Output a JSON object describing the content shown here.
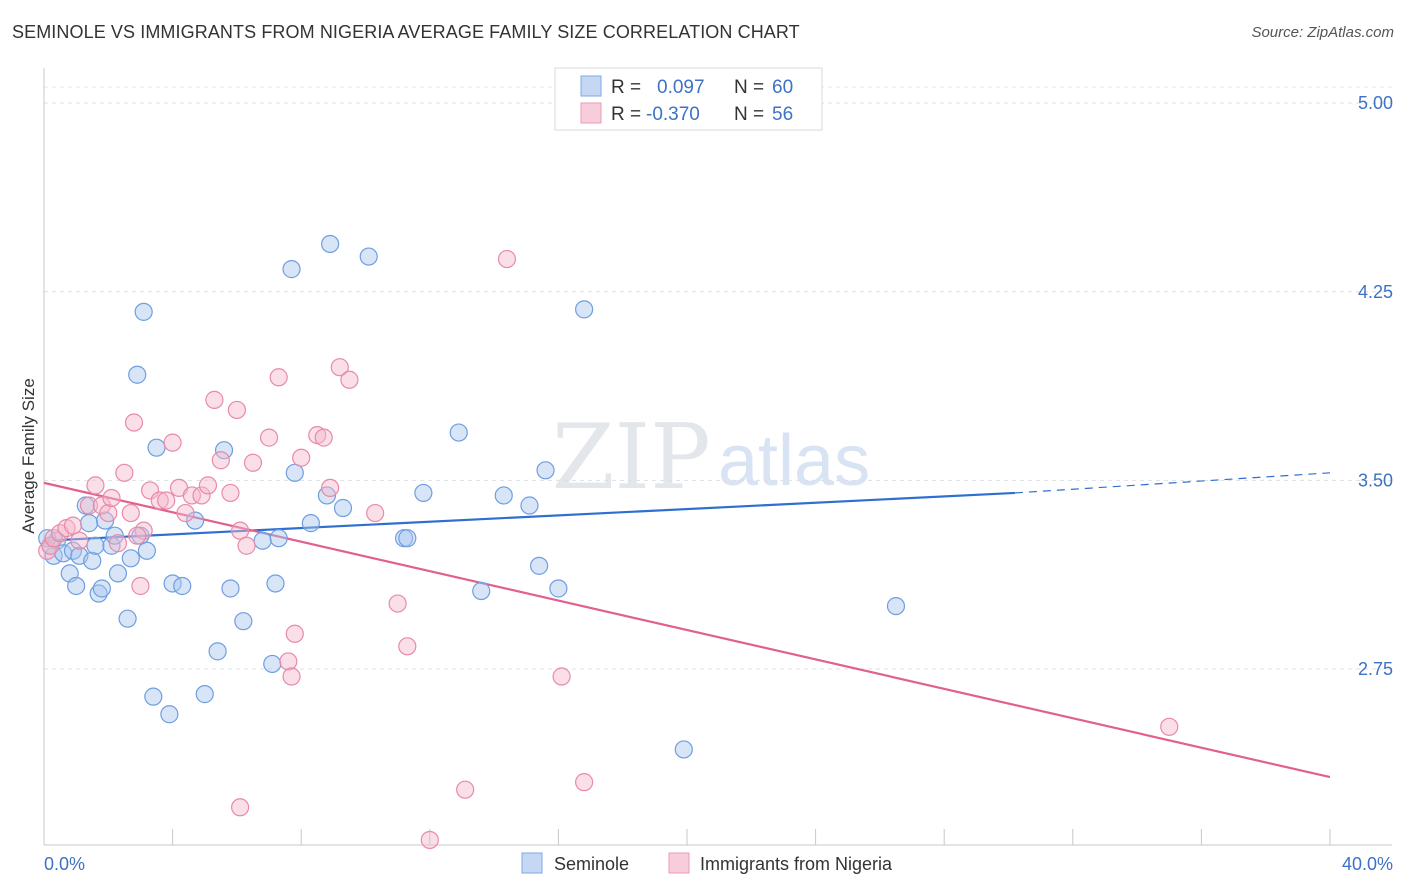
{
  "header": {
    "title": "SEMINOLE VS IMMIGRANTS FROM NIGERIA AVERAGE FAMILY SIZE CORRELATION CHART",
    "source": "Source: ZipAtlas.com"
  },
  "watermark": {
    "zip": "ZIP",
    "atlas": "atlas"
  },
  "legend": {
    "r_label": "R =",
    "n_label": "N =",
    "rows": [
      {
        "r": "0.097",
        "n": "60",
        "color": "#a9c6ee"
      },
      {
        "r": "-0.370",
        "n": "56",
        "color": "#f5b8cb"
      }
    ]
  },
  "bottom_legend": [
    "Seminole",
    "Immigrants from Nigeria"
  ],
  "chart_data": {
    "type": "scatter",
    "title": "SEMINOLE VS IMMIGRANTS FROM NIGERIA AVERAGE FAMILY SIZE CORRELATION CHART",
    "xlabel": "",
    "ylabel": "Average Family Size",
    "xlim": [
      0,
      40
    ],
    "ylim": [
      2.05,
      5.1
    ],
    "x_tick_labels": [
      "0.0%",
      "40.0%"
    ],
    "y_ticks": [
      2.75,
      3.5,
      4.25,
      5.0
    ],
    "y_tick_labels": [
      "2.75",
      "3.50",
      "4.25",
      "5.00"
    ],
    "grid": "horizontal dashed",
    "series": [
      {
        "name": "Seminole",
        "color": "#a9c6ee",
        "stroke": "#6f9ee0",
        "line_color": "#2f6fcf",
        "trend": {
          "x0": 0.0,
          "y0": 3.26,
          "x1": 30.2,
          "y1": 3.45,
          "dash_to_x": 40.0,
          "dash_to_y": 3.53
        },
        "points": [
          [
            0.2,
            3.24
          ],
          [
            0.3,
            3.2
          ],
          [
            0.4,
            3.26
          ],
          [
            0.6,
            3.21
          ],
          [
            0.8,
            3.13
          ],
          [
            0.9,
            3.22
          ],
          [
            1.0,
            3.08
          ],
          [
            1.1,
            3.2
          ],
          [
            1.3,
            3.4
          ],
          [
            1.4,
            3.33
          ],
          [
            1.5,
            3.18
          ],
          [
            1.6,
            3.24
          ],
          [
            1.7,
            3.05
          ],
          [
            1.8,
            3.07
          ],
          [
            1.9,
            3.34
          ],
          [
            2.1,
            3.24
          ],
          [
            2.2,
            3.28
          ],
          [
            2.3,
            3.13
          ],
          [
            2.6,
            2.95
          ],
          [
            2.7,
            3.19
          ],
          [
            2.9,
            3.92
          ],
          [
            3.0,
            3.28
          ],
          [
            3.1,
            4.17
          ],
          [
            3.2,
            3.22
          ],
          [
            3.4,
            2.64
          ],
          [
            3.5,
            3.63
          ],
          [
            3.9,
            2.57
          ],
          [
            4.0,
            3.09
          ],
          [
            4.3,
            3.08
          ],
          [
            4.7,
            3.34
          ],
          [
            5.0,
            2.65
          ],
          [
            5.4,
            2.82
          ],
          [
            5.6,
            3.62
          ],
          [
            5.8,
            3.07
          ],
          [
            6.2,
            2.94
          ],
          [
            6.8,
            3.26
          ],
          [
            7.1,
            2.77
          ],
          [
            7.2,
            3.09
          ],
          [
            7.3,
            3.27
          ],
          [
            7.7,
            4.34
          ],
          [
            7.8,
            3.53
          ],
          [
            8.3,
            3.33
          ],
          [
            8.8,
            3.44
          ],
          [
            8.9,
            4.44
          ],
          [
            9.3,
            3.39
          ],
          [
            10.1,
            4.39
          ],
          [
            11.2,
            3.27
          ],
          [
            11.3,
            3.27
          ],
          [
            11.8,
            3.45
          ],
          [
            12.9,
            3.69
          ],
          [
            13.6,
            3.06
          ],
          [
            14.3,
            3.44
          ],
          [
            15.1,
            3.4
          ],
          [
            15.4,
            3.16
          ],
          [
            15.6,
            3.54
          ],
          [
            16.0,
            3.07
          ],
          [
            16.8,
            4.18
          ],
          [
            19.9,
            2.43
          ],
          [
            26.5,
            3.0
          ],
          [
            0.1,
            3.27
          ]
        ]
      },
      {
        "name": "Immigrants from Nigeria",
        "color": "#f5b8cb",
        "stroke": "#e88aa8",
        "line_color": "#e0608e",
        "trend": {
          "x0": 0.0,
          "y0": 3.49,
          "x1": 40.0,
          "y1": 2.32
        },
        "points": [
          [
            0.1,
            3.22
          ],
          [
            0.2,
            3.24
          ],
          [
            0.3,
            3.27
          ],
          [
            0.5,
            3.29
          ],
          [
            0.7,
            3.31
          ],
          [
            0.9,
            3.32
          ],
          [
            1.1,
            3.26
          ],
          [
            1.4,
            3.4
          ],
          [
            1.6,
            3.48
          ],
          [
            1.8,
            3.4
          ],
          [
            2.0,
            3.37
          ],
          [
            2.1,
            3.43
          ],
          [
            2.3,
            3.25
          ],
          [
            2.5,
            3.53
          ],
          [
            2.7,
            3.37
          ],
          [
            2.8,
            3.73
          ],
          [
            3.0,
            3.08
          ],
          [
            3.1,
            3.3
          ],
          [
            3.3,
            3.46
          ],
          [
            3.6,
            3.42
          ],
          [
            3.8,
            3.42
          ],
          [
            4.0,
            3.65
          ],
          [
            4.2,
            3.47
          ],
          [
            4.4,
            3.37
          ],
          [
            4.6,
            3.44
          ],
          [
            4.9,
            3.44
          ],
          [
            5.1,
            3.48
          ],
          [
            5.3,
            3.82
          ],
          [
            5.5,
            3.58
          ],
          [
            5.8,
            3.45
          ],
          [
            6.0,
            3.78
          ],
          [
            6.1,
            3.3
          ],
          [
            6.3,
            3.24
          ],
          [
            6.5,
            3.57
          ],
          [
            7.0,
            3.67
          ],
          [
            7.3,
            3.91
          ],
          [
            7.6,
            2.78
          ],
          [
            7.7,
            2.72
          ],
          [
            7.8,
            2.89
          ],
          [
            8.0,
            3.59
          ],
          [
            8.5,
            3.68
          ],
          [
            8.7,
            3.67
          ],
          [
            8.9,
            3.47
          ],
          [
            9.2,
            3.95
          ],
          [
            9.5,
            3.9
          ],
          [
            10.3,
            3.37
          ],
          [
            11.0,
            3.01
          ],
          [
            11.3,
            2.84
          ],
          [
            12.0,
            2.07
          ],
          [
            13.1,
            2.27
          ],
          [
            14.4,
            4.38
          ],
          [
            16.1,
            2.72
          ],
          [
            16.8,
            2.3
          ],
          [
            35.0,
            2.52
          ],
          [
            6.1,
            2.2
          ],
          [
            2.9,
            3.28
          ]
        ]
      }
    ]
  }
}
